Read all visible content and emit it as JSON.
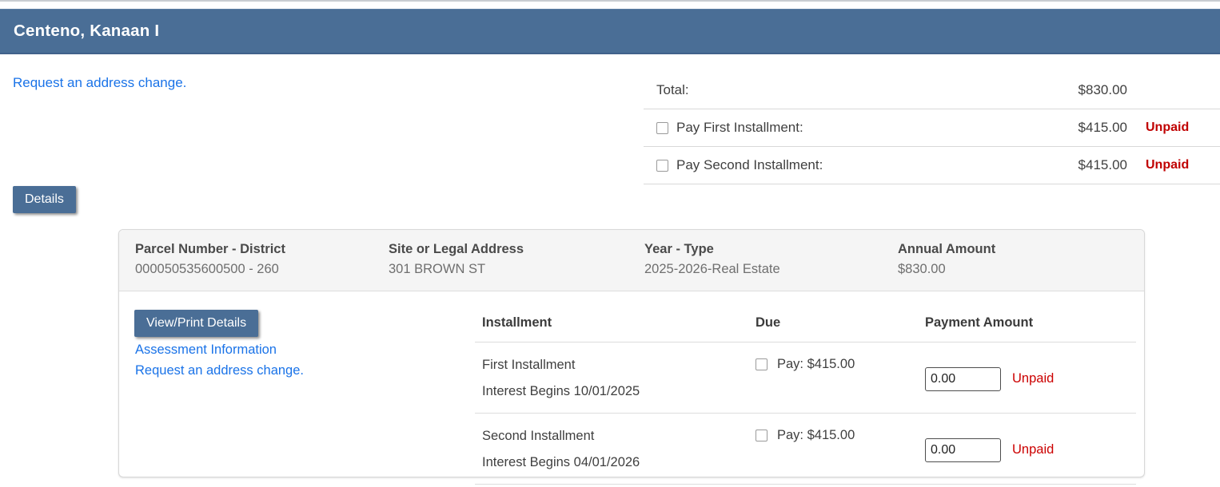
{
  "header": {
    "title": "Centeno, Kanaan I"
  },
  "top_link": "Request an address change.",
  "summary": {
    "rows": [
      {
        "label": "Total:",
        "amount": "$830.00",
        "status": "",
        "has_checkbox": false
      },
      {
        "label": "Pay First Installment:",
        "amount": "$415.00",
        "status": "Unpaid",
        "has_checkbox": true
      },
      {
        "label": "Pay Second Installment:",
        "amount": "$415.00",
        "status": "Unpaid",
        "has_checkbox": true
      }
    ]
  },
  "details_button_label": "Details",
  "panel": {
    "info": [
      {
        "label": "Parcel Number - District",
        "value": "000050535600500 - 260"
      },
      {
        "label": "Site or Legal Address",
        "value": "301 BROWN ST"
      },
      {
        "label": "Year - Type",
        "value": "2025-2026-Real Estate"
      },
      {
        "label": "Annual Amount",
        "value": "$830.00"
      }
    ],
    "view_print_button_label": "View/Print Details",
    "links": [
      "Assessment Information",
      "Request an address change."
    ],
    "table": {
      "headers": [
        "Installment",
        "Due",
        "Payment Amount"
      ],
      "rows": [
        {
          "name": "First Installment",
          "note": "Interest Begins 10/01/2025",
          "due": "Pay: $415.00",
          "payment_value": "0.00",
          "status": "Unpaid"
        },
        {
          "name": "Second Installment",
          "note": "Interest Begins 04/01/2026",
          "due": "Pay: $415.00",
          "payment_value": "0.00",
          "status": "Unpaid"
        }
      ]
    }
  },
  "colors": {
    "accent_bar": "#4a6e96",
    "link_blue": "#1a73e8",
    "unpaid_red": "#cc0000",
    "panel_header_bg": "#f5f5f5",
    "divider": "#dddddd"
  }
}
